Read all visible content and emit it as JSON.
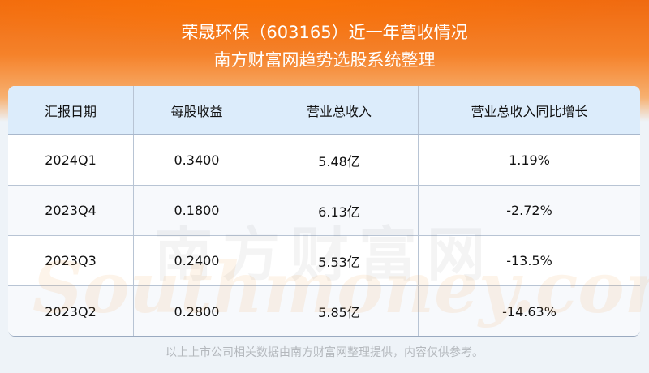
{
  "header": {
    "title": "荣晟环保（603165）近一年营收情况",
    "subtitle": "南方财富网趋势选股系统整理"
  },
  "table": {
    "columns": [
      "汇报日期",
      "每股收益",
      "营业总收入",
      "营业总收入同比增长"
    ],
    "rows": [
      [
        "2024Q1",
        "0.3400",
        "5.48亿",
        "1.19%"
      ],
      [
        "2023Q4",
        "0.1800",
        "6.13亿",
        "-2.72%"
      ],
      [
        "2023Q3",
        "0.2400",
        "5.53亿",
        "-13.5%"
      ],
      [
        "2023Q2",
        "0.2800",
        "5.85亿",
        "-14.63%"
      ]
    ]
  },
  "watermark": {
    "cn": "南方财富网",
    "en": "Southmoney.com"
  },
  "footer": "以上上市公司相关数据由南方财富网整理提供，内容仅供参考。",
  "colors": {
    "banner": "#f06a10",
    "header_row": "#dcecfb"
  }
}
